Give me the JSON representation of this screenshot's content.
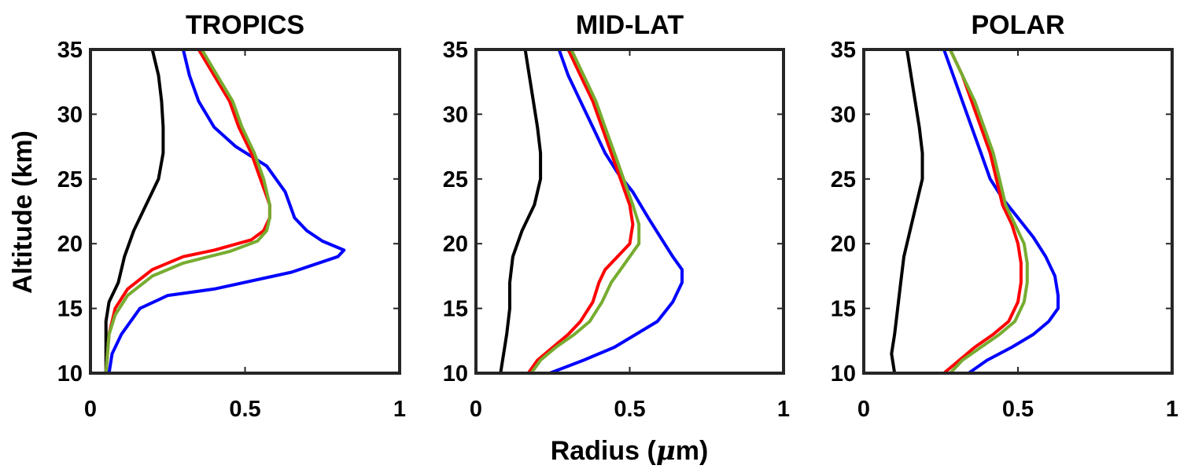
{
  "figure": {
    "shared_xlabel_text": "Radius (",
    "shared_xlabel_symbol": "μ",
    "shared_xlabel_suffix": "m)",
    "shared_ylabel": "Altitude (km)"
  },
  "chart_data": [
    {
      "type": "line",
      "title": "TROPICS",
      "xlabel": "Radius (μm)",
      "ylabel": "Altitude (km)",
      "xlim": [
        0,
        1
      ],
      "ylim": [
        10,
        35
      ],
      "xticks": [
        "0",
        "0.5",
        "1"
      ],
      "yticks": [
        "10",
        "15",
        "20",
        "25",
        "30",
        "35"
      ],
      "grid": false,
      "series": [
        {
          "color": "#000000",
          "points": [
            [
              0.2,
              35
            ],
            [
              0.22,
              33
            ],
            [
              0.23,
              31
            ],
            [
              0.235,
              29
            ],
            [
              0.235,
              27
            ],
            [
              0.22,
              25
            ],
            [
              0.18,
              23
            ],
            [
              0.14,
              21
            ],
            [
              0.11,
              19
            ],
            [
              0.09,
              17
            ],
            [
              0.06,
              15.5
            ],
            [
              0.05,
              14
            ],
            [
              0.05,
              12
            ],
            [
              0.05,
              10
            ]
          ]
        },
        {
          "color": "#0000ff",
          "points": [
            [
              0.3,
              35
            ],
            [
              0.32,
              33
            ],
            [
              0.35,
              31
            ],
            [
              0.4,
              29
            ],
            [
              0.47,
              27.5
            ],
            [
              0.57,
              26
            ],
            [
              0.63,
              24
            ],
            [
              0.66,
              22
            ],
            [
              0.7,
              21
            ],
            [
              0.75,
              20.2
            ],
            [
              0.82,
              19.5
            ],
            [
              0.8,
              19
            ],
            [
              0.65,
              17.8
            ],
            [
              0.4,
              16.5
            ],
            [
              0.25,
              16
            ],
            [
              0.16,
              15
            ],
            [
              0.1,
              13
            ],
            [
              0.07,
              11.5
            ],
            [
              0.06,
              10
            ]
          ]
        },
        {
          "color": "#ff0000",
          "points": [
            [
              0.35,
              35
            ],
            [
              0.4,
              33
            ],
            [
              0.45,
              31
            ],
            [
              0.48,
              29
            ],
            [
              0.52,
              27
            ],
            [
              0.55,
              25
            ],
            [
              0.58,
              23
            ],
            [
              0.58,
              22
            ],
            [
              0.56,
              21
            ],
            [
              0.52,
              20.3
            ],
            [
              0.4,
              19.5
            ],
            [
              0.3,
              19
            ],
            [
              0.2,
              18
            ],
            [
              0.12,
              16.5
            ],
            [
              0.08,
              15
            ],
            [
              0.06,
              13
            ],
            [
              0.055,
              11.5
            ],
            [
              0.05,
              10
            ]
          ]
        },
        {
          "color": "#77ac30",
          "points": [
            [
              0.36,
              35
            ],
            [
              0.41,
              33
            ],
            [
              0.46,
              31
            ],
            [
              0.49,
              29
            ],
            [
              0.53,
              27
            ],
            [
              0.56,
              25
            ],
            [
              0.58,
              23
            ],
            [
              0.58,
              22
            ],
            [
              0.57,
              21
            ],
            [
              0.54,
              20.2
            ],
            [
              0.45,
              19.4
            ],
            [
              0.3,
              18.5
            ],
            [
              0.2,
              17.5
            ],
            [
              0.12,
              16
            ],
            [
              0.08,
              14.5
            ],
            [
              0.06,
              13
            ],
            [
              0.055,
              11.5
            ],
            [
              0.05,
              10
            ]
          ]
        }
      ]
    },
    {
      "type": "line",
      "title": "MID-LAT",
      "xlabel": "Radius (μm)",
      "ylabel": "",
      "xlim": [
        0,
        1
      ],
      "ylim": [
        10,
        35
      ],
      "xticks": [
        "0",
        "0.5",
        "1"
      ],
      "yticks": [
        "10",
        "15",
        "20",
        "25",
        "30",
        "35"
      ],
      "grid": false,
      "series": [
        {
          "color": "#000000",
          "points": [
            [
              0.16,
              35
            ],
            [
              0.18,
              32
            ],
            [
              0.2,
              29
            ],
            [
              0.21,
              27
            ],
            [
              0.21,
              25
            ],
            [
              0.19,
              23
            ],
            [
              0.15,
              21
            ],
            [
              0.12,
              19
            ],
            [
              0.11,
              17
            ],
            [
              0.11,
              15
            ],
            [
              0.1,
              13
            ],
            [
              0.09,
              11.5
            ],
            [
              0.08,
              10
            ]
          ]
        },
        {
          "color": "#0000ff",
          "points": [
            [
              0.27,
              35
            ],
            [
              0.3,
              33
            ],
            [
              0.34,
              31
            ],
            [
              0.38,
              29
            ],
            [
              0.42,
              27
            ],
            [
              0.46,
              25.5
            ],
            [
              0.51,
              24
            ],
            [
              0.56,
              22
            ],
            [
              0.6,
              20.5
            ],
            [
              0.64,
              19
            ],
            [
              0.67,
              18
            ],
            [
              0.67,
              17
            ],
            [
              0.64,
              15.5
            ],
            [
              0.59,
              14
            ],
            [
              0.52,
              13
            ],
            [
              0.45,
              12
            ],
            [
              0.35,
              11
            ],
            [
              0.24,
              10
            ]
          ]
        },
        {
          "color": "#ff0000",
          "points": [
            [
              0.3,
              35
            ],
            [
              0.34,
              33
            ],
            [
              0.38,
              31
            ],
            [
              0.41,
              29
            ],
            [
              0.44,
              27
            ],
            [
              0.47,
              25
            ],
            [
              0.5,
              23
            ],
            [
              0.51,
              21.5
            ],
            [
              0.5,
              20
            ],
            [
              0.46,
              19
            ],
            [
              0.42,
              18
            ],
            [
              0.4,
              17
            ],
            [
              0.38,
              15.5
            ],
            [
              0.34,
              14
            ],
            [
              0.3,
              13
            ],
            [
              0.25,
              12
            ],
            [
              0.2,
              11
            ],
            [
              0.17,
              10
            ]
          ]
        },
        {
          "color": "#77ac30",
          "points": [
            [
              0.31,
              35
            ],
            [
              0.35,
              33
            ],
            [
              0.39,
              31
            ],
            [
              0.42,
              29
            ],
            [
              0.45,
              27
            ],
            [
              0.48,
              25
            ],
            [
              0.51,
              23
            ],
            [
              0.53,
              21.5
            ],
            [
              0.53,
              20
            ],
            [
              0.5,
              19
            ],
            [
              0.47,
              18
            ],
            [
              0.44,
              17
            ],
            [
              0.41,
              15.5
            ],
            [
              0.37,
              14
            ],
            [
              0.32,
              13
            ],
            [
              0.26,
              12
            ],
            [
              0.21,
              11
            ],
            [
              0.18,
              10
            ]
          ]
        }
      ]
    },
    {
      "type": "line",
      "title": "POLAR",
      "xlabel": "Radius (μm)",
      "ylabel": "",
      "xlim": [
        0,
        1
      ],
      "ylim": [
        10,
        35
      ],
      "xticks": [
        "0",
        "0.5",
        "1"
      ],
      "yticks": [
        "10",
        "15",
        "20",
        "25",
        "30",
        "35"
      ],
      "grid": false,
      "series": [
        {
          "color": "#000000",
          "points": [
            [
              0.14,
              35
            ],
            [
              0.16,
              32
            ],
            [
              0.18,
              29
            ],
            [
              0.19,
              27
            ],
            [
              0.19,
              25
            ],
            [
              0.17,
              23
            ],
            [
              0.15,
              21
            ],
            [
              0.13,
              19
            ],
            [
              0.12,
              17
            ],
            [
              0.11,
              15
            ],
            [
              0.1,
              13
            ],
            [
              0.09,
              11.5
            ],
            [
              0.1,
              10
            ]
          ]
        },
        {
          "color": "#0000ff",
          "points": [
            [
              0.26,
              35
            ],
            [
              0.29,
              33
            ],
            [
              0.32,
              31
            ],
            [
              0.35,
              29
            ],
            [
              0.38,
              27
            ],
            [
              0.41,
              25
            ],
            [
              0.45,
              23.5
            ],
            [
              0.5,
              22
            ],
            [
              0.55,
              20.5
            ],
            [
              0.59,
              19
            ],
            [
              0.62,
              17.5
            ],
            [
              0.63,
              16
            ],
            [
              0.63,
              15
            ],
            [
              0.6,
              14
            ],
            [
              0.55,
              13
            ],
            [
              0.48,
              12
            ],
            [
              0.4,
              11
            ],
            [
              0.34,
              10
            ]
          ]
        },
        {
          "color": "#ff0000",
          "points": [
            [
              0.28,
              35
            ],
            [
              0.32,
              33
            ],
            [
              0.35,
              31
            ],
            [
              0.38,
              29
            ],
            [
              0.41,
              27
            ],
            [
              0.43,
              25
            ],
            [
              0.45,
              23
            ],
            [
              0.48,
              21.5
            ],
            [
              0.5,
              20
            ],
            [
              0.51,
              18.5
            ],
            [
              0.51,
              17
            ],
            [
              0.5,
              15.5
            ],
            [
              0.47,
              14
            ],
            [
              0.42,
              13
            ],
            [
              0.36,
              12
            ],
            [
              0.31,
              11
            ],
            [
              0.26,
              10
            ]
          ]
        },
        {
          "color": "#77ac30",
          "points": [
            [
              0.28,
              35
            ],
            [
              0.32,
              33
            ],
            [
              0.36,
              31
            ],
            [
              0.39,
              29
            ],
            [
              0.42,
              27
            ],
            [
              0.44,
              25
            ],
            [
              0.46,
              23
            ],
            [
              0.49,
              21.5
            ],
            [
              0.52,
              20
            ],
            [
              0.53,
              18.5
            ],
            [
              0.53,
              17
            ],
            [
              0.52,
              15.5
            ],
            [
              0.49,
              14
            ],
            [
              0.44,
              13
            ],
            [
              0.38,
              12
            ],
            [
              0.32,
              11
            ],
            [
              0.28,
              10
            ]
          ]
        }
      ]
    }
  ]
}
